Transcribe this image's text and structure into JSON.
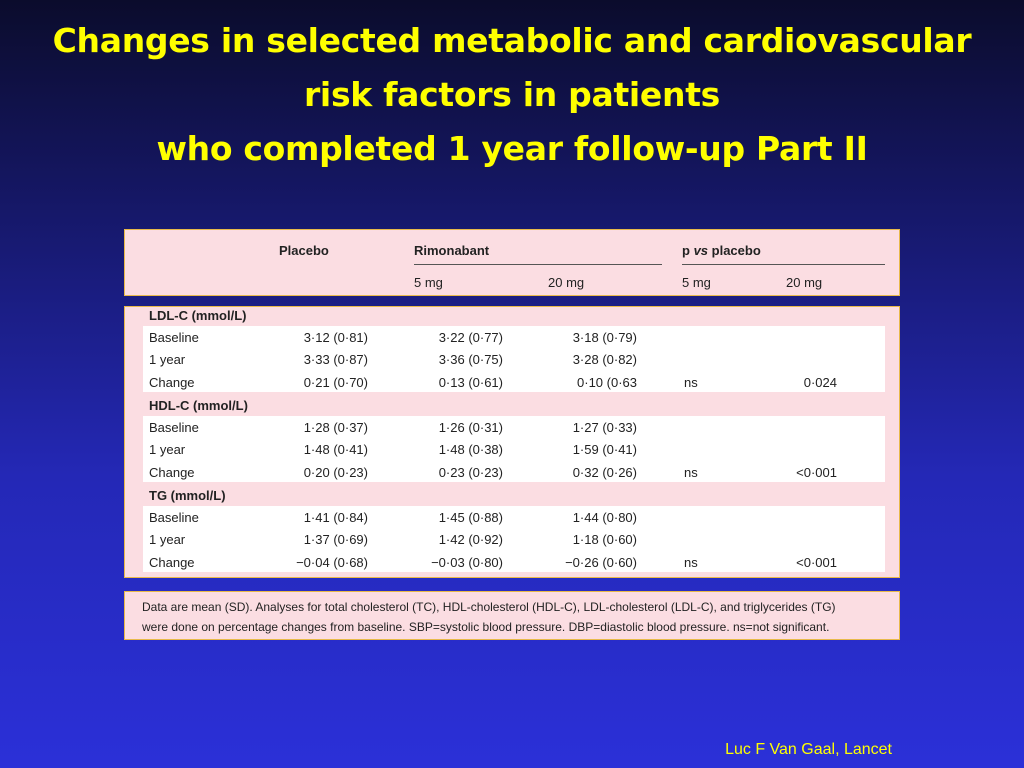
{
  "title": {
    "line1": "Changes in selected metabolic and cardiovascular",
    "line2": "risk factors in patients",
    "line3": "who completed 1 year follow-up Part II"
  },
  "table": {
    "header": {
      "placebo": "Placebo",
      "rimonabant": "Rimonabant",
      "p_vs_placebo_p": "p ",
      "p_vs_placebo_vs": "vs",
      "p_vs_placebo_rest": " placebo",
      "sub": [
        "5 mg",
        "20 mg",
        "5 mg",
        "20 mg"
      ]
    },
    "sections": [
      {
        "label": "LDL-C (mmol/L)",
        "rows": [
          {
            "label": "Baseline",
            "values": [
              "3·12 (0·81)",
              "3·22 (0·77)",
              "3·18 (0·79)",
              "",
              ""
            ]
          },
          {
            "label": "1 year",
            "values": [
              "3·33 (0·87)",
              "3·36 (0·75)",
              "3·28 (0·82)",
              "",
              ""
            ]
          },
          {
            "label": "Change",
            "values": [
              "0·21 (0·70)",
              "0·13 (0·61)",
              "0·10 (0·63",
              "ns",
              "0·024"
            ]
          }
        ]
      },
      {
        "label": "HDL-C (mmol/L)",
        "rows": [
          {
            "label": "Baseline",
            "values": [
              "1·28 (0·37)",
              "1·26 (0·31)",
              "1·27 (0·33)",
              "",
              ""
            ]
          },
          {
            "label": "1 year",
            "values": [
              "1·48 (0·41)",
              "1·48 (0·38)",
              "1·59 (0·41)",
              "",
              ""
            ]
          },
          {
            "label": "Change",
            "values": [
              "0·20 (0·23)",
              "0·23 (0·23)",
              "0·32 (0·26)",
              "ns",
              "<0·001"
            ]
          }
        ]
      },
      {
        "label": "TG (mmol/L)",
        "rows": [
          {
            "label": "Baseline",
            "values": [
              "1·41 (0·84)",
              "1·45 (0·88)",
              "1·44 (0·80)",
              "",
              ""
            ]
          },
          {
            "label": "1 year",
            "values": [
              "1·37 (0·69)",
              "1·42 (0·92)",
              "1·18 (0·60)",
              "",
              ""
            ]
          },
          {
            "label": "Change",
            "values": [
              "−0·04 (0·68)",
              "−0·03 (0·80)",
              "−0·26 (0·60)",
              "ns",
              "<0·001"
            ]
          }
        ]
      }
    ]
  },
  "footnote": {
    "line1": "Data are mean (SD). Analyses for total cholesterol (TC), HDL-cholesterol (HDL-C), LDL-cholesterol (LDL-C), and triglycerides (TG)",
    "line2": "were done on percentage changes from baseline. SBP=systolic blood pressure. DBP=diastolic blood pressure. ns=not significant."
  },
  "credit": "Luc F Van Gaal, Lancet",
  "colors": {
    "title": "#ffff00",
    "panel": "#fbdde2",
    "panel_border": "#e8b94a",
    "background": "#2428b6"
  }
}
